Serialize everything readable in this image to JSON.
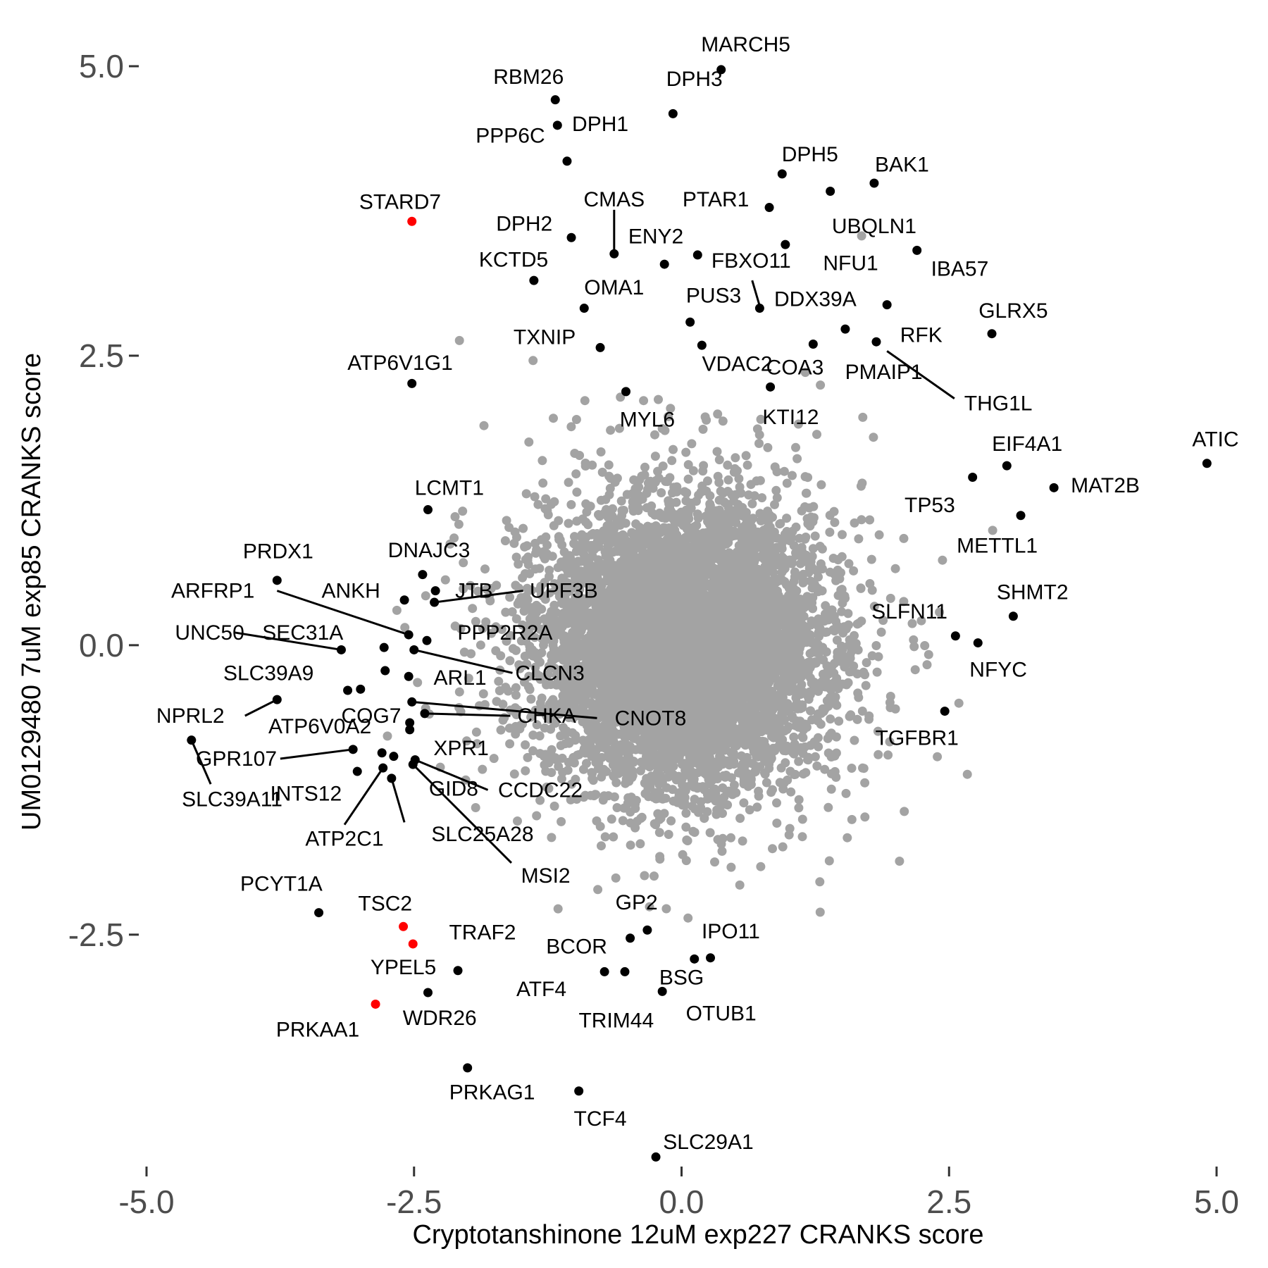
{
  "chart_data": {
    "type": "scatter",
    "xlabel": "Cryptotanshinone 12uM exp227 CRANKS score",
    "ylabel": "UM0129480 7uM exp85 CRANKS score",
    "xlim": [
      -5.0,
      5.0
    ],
    "ylim": [
      -4.6,
      5.0
    ],
    "x_ticks": [
      -5.0,
      -2.5,
      0.0,
      2.5,
      5.0
    ],
    "y_ticks": [
      -2.5,
      0.0,
      2.5,
      5.0
    ],
    "x_tick_labels": [
      "-5.0",
      "-2.5",
      "0.0",
      "2.5",
      "5.0"
    ],
    "y_tick_labels": [
      "-2.5",
      "0.0",
      "2.5",
      "5.0"
    ],
    "grid": false,
    "legend": "none",
    "colors": {
      "background_genes": "#a3a3a3",
      "labeled_genes": "#000000",
      "highlighted_genes": "#ff0000"
    },
    "background_points": {
      "description": "several thousand unlabeled genes forming a dense cloud",
      "center": [
        0.0,
        0.0
      ],
      "core_spread": [
        1.1,
        1.0
      ],
      "outer_spread": [
        1.6,
        1.5
      ]
    },
    "labeled_points": [
      {
        "gene": "MARCH5",
        "x": 0.37,
        "y": 4.97,
        "color": "black"
      },
      {
        "gene": "DPH3",
        "x": -0.08,
        "y": 4.59,
        "color": "black"
      },
      {
        "gene": "RBM26",
        "x": -1.18,
        "y": 4.71,
        "color": "black"
      },
      {
        "gene": "PPP6C",
        "x": -1.16,
        "y": 4.49,
        "color": "black"
      },
      {
        "gene": "DPH1",
        "x": -1.07,
        "y": 4.18,
        "color": "black"
      },
      {
        "gene": "DPH5",
        "x": 0.94,
        "y": 4.07,
        "color": "black"
      },
      {
        "gene": "BAK1",
        "x": 1.8,
        "y": 3.99,
        "color": "black"
      },
      {
        "gene": "UBQLN1",
        "x": 1.39,
        "y": 3.92,
        "color": "black"
      },
      {
        "gene": "PTAR1",
        "x": 0.82,
        "y": 3.78,
        "color": "black"
      },
      {
        "gene": "STARD7",
        "x": -2.52,
        "y": 3.66,
        "color": "red"
      },
      {
        "gene": "DPH2",
        "x": -1.03,
        "y": 3.52,
        "color": "black"
      },
      {
        "gene": "CMAS",
        "x": -0.63,
        "y": 3.38,
        "color": "black"
      },
      {
        "gene": "ENY2",
        "x": -0.16,
        "y": 3.29,
        "color": "black"
      },
      {
        "gene": "FBXO11",
        "x": 0.15,
        "y": 3.37,
        "color": "black"
      },
      {
        "gene": "NFU1",
        "x": 0.97,
        "y": 3.46,
        "color": "black"
      },
      {
        "gene": "IBA57",
        "x": 2.2,
        "y": 3.41,
        "color": "black"
      },
      {
        "gene": "KCTD5",
        "x": -1.38,
        "y": 3.15,
        "color": "black"
      },
      {
        "gene": "OMA1",
        "x": -0.91,
        "y": 2.91,
        "color": "black"
      },
      {
        "gene": "DDX39A",
        "x": 0.73,
        "y": 2.91,
        "color": "black"
      },
      {
        "gene": "PUS3",
        "x": 0.08,
        "y": 2.79,
        "color": "black"
      },
      {
        "gene": "GLRX5",
        "x": 2.9,
        "y": 2.69,
        "color": "black"
      },
      {
        "gene": "RFK",
        "x": 1.82,
        "y": 2.62,
        "color": "black"
      },
      {
        "gene": "TXNIP",
        "x": -0.76,
        "y": 2.57,
        "color": "black"
      },
      {
        "gene": "VDAC2",
        "x": 0.19,
        "y": 2.59,
        "color": "black"
      },
      {
        "gene": "COA3",
        "x": 1.23,
        "y": 2.6,
        "color": "black"
      },
      {
        "gene": "PMAIP1",
        "x": 1.53,
        "y": 2.73,
        "color": "black"
      },
      {
        "gene": "THG1L",
        "x": 1.92,
        "y": 2.94,
        "color": "black"
      },
      {
        "gene": "KTI12",
        "x": 0.83,
        "y": 2.23,
        "color": "black"
      },
      {
        "gene": "ATP6V1G1",
        "x": -2.52,
        "y": 2.26,
        "color": "black"
      },
      {
        "gene": "MYL6",
        "x": -0.52,
        "y": 2.19,
        "color": "black"
      },
      {
        "gene": "ATIC",
        "x": 4.91,
        "y": 1.57,
        "color": "black"
      },
      {
        "gene": "EIF4A1",
        "x": 3.04,
        "y": 1.55,
        "color": "black"
      },
      {
        "gene": "TP53",
        "x": 2.72,
        "y": 1.45,
        "color": "black"
      },
      {
        "gene": "MAT2B",
        "x": 3.48,
        "y": 1.36,
        "color": "black"
      },
      {
        "gene": "METTL1",
        "x": 3.17,
        "y": 1.12,
        "color": "black"
      },
      {
        "gene": "LCMT1",
        "x": -2.37,
        "y": 1.17,
        "color": "black"
      },
      {
        "gene": "PRDX1",
        "x": -3.78,
        "y": 0.56,
        "color": "black"
      },
      {
        "gene": "DNAJC3",
        "x": -2.42,
        "y": 0.61,
        "color": "black"
      },
      {
        "gene": "ANKH",
        "x": -2.59,
        "y": 0.39,
        "color": "black"
      },
      {
        "gene": "JTB",
        "x": -2.31,
        "y": 0.37,
        "color": "black"
      },
      {
        "gene": "UPF3B",
        "x": -2.3,
        "y": 0.47,
        "color": "black"
      },
      {
        "gene": "ARFRP1",
        "x": -2.55,
        "y": 0.09,
        "color": "black"
      },
      {
        "gene": "PPP2R2A",
        "x": -2.38,
        "y": 0.04,
        "color": "black"
      },
      {
        "gene": "SHMT2",
        "x": 3.1,
        "y": 0.25,
        "color": "black"
      },
      {
        "gene": "SLFN11",
        "x": 2.56,
        "y": 0.08,
        "color": "black"
      },
      {
        "gene": "NFYC",
        "x": 2.77,
        "y": 0.02,
        "color": "black"
      },
      {
        "gene": "UNC50",
        "x": -3.18,
        "y": -0.04,
        "color": "black"
      },
      {
        "gene": "SEC31A",
        "x": -2.78,
        "y": -0.02,
        "color": "black"
      },
      {
        "gene": "CLCN3",
        "x": -2.5,
        "y": -0.04,
        "color": "black"
      },
      {
        "gene": "ARL1",
        "x": -2.77,
        "y": -0.22,
        "color": "black"
      },
      {
        "gene": "SLC39A9",
        "x": -3.12,
        "y": -0.39,
        "color": "black"
      },
      {
        "gene": "SLC39A9",
        "x": -3.0,
        "y": -0.38,
        "color": "black"
      },
      {
        "gene": "COG7",
        "x": -2.55,
        "y": -0.27,
        "color": "black"
      },
      {
        "gene": "NPRL2",
        "x": -3.78,
        "y": -0.47,
        "color": "black"
      },
      {
        "gene": "CHKA",
        "x": -2.52,
        "y": -0.49,
        "color": "black"
      },
      {
        "gene": "CNOT8",
        "x": -2.4,
        "y": -0.59,
        "color": "black"
      },
      {
        "gene": "ATP6V0A2",
        "x": -2.54,
        "y": -0.67,
        "color": "black"
      },
      {
        "gene": "TGFBR1",
        "x": 2.46,
        "y": -0.57,
        "color": "black"
      },
      {
        "gene": "SLC39A11",
        "x": -4.58,
        "y": -0.82,
        "color": "black"
      },
      {
        "gene": "XPR1",
        "x": -2.54,
        "y": -0.73,
        "color": "black"
      },
      {
        "gene": "GPR107",
        "x": -3.07,
        "y": -0.9,
        "color": "black"
      },
      {
        "gene": "INTS12",
        "x": -2.8,
        "y": -0.93,
        "color": "black"
      },
      {
        "gene": "INTS12",
        "x": -3.03,
        "y": -1.09,
        "color": "black"
      },
      {
        "gene": "CCDC22",
        "x": -2.49,
        "y": -0.99,
        "color": "black"
      },
      {
        "gene": "GID8",
        "x": -2.69,
        "y": -0.96,
        "color": "black"
      },
      {
        "gene": "ATP2C1",
        "x": -2.79,
        "y": -1.06,
        "color": "black"
      },
      {
        "gene": "SLC25A28",
        "x": -2.71,
        "y": -1.15,
        "color": "black"
      },
      {
        "gene": "MSI2",
        "x": -2.51,
        "y": -1.03,
        "color": "black"
      },
      {
        "gene": "PCYT1A",
        "x": -3.39,
        "y": -2.31,
        "color": "black"
      },
      {
        "gene": "TSC2",
        "x": -2.6,
        "y": -2.43,
        "color": "red"
      },
      {
        "gene": "TRAF2",
        "x": -2.51,
        "y": -2.58,
        "color": "red"
      },
      {
        "gene": "YPEL5",
        "x": -2.09,
        "y": -2.81,
        "color": "black"
      },
      {
        "gene": "WDR26",
        "x": -2.37,
        "y": -3.0,
        "color": "black"
      },
      {
        "gene": "PRKAA1",
        "x": -2.86,
        "y": -3.1,
        "color": "red"
      },
      {
        "gene": "GP2",
        "x": -0.32,
        "y": -2.46,
        "color": "black"
      },
      {
        "gene": "BCOR",
        "x": -0.48,
        "y": -2.53,
        "color": "black"
      },
      {
        "gene": "IPO11",
        "x": 0.27,
        "y": -2.7,
        "color": "black"
      },
      {
        "gene": "IPO11",
        "x": 0.12,
        "y": -2.71,
        "color": "black"
      },
      {
        "gene": "ATF4",
        "x": -0.72,
        "y": -2.82,
        "color": "black"
      },
      {
        "gene": "TRIM44",
        "x": -0.53,
        "y": -2.82,
        "color": "black"
      },
      {
        "gene": "BSG",
        "x": -0.18,
        "y": -2.99,
        "color": "black"
      },
      {
        "gene": "PRKAG1",
        "x": -2.0,
        "y": -3.65,
        "color": "black"
      },
      {
        "gene": "TCF4",
        "x": -0.96,
        "y": -3.85,
        "color": "black"
      },
      {
        "gene": "SLC29A1",
        "x": -0.24,
        "y": -4.42,
        "color": "black"
      }
    ],
    "annotations": [
      {
        "text": "MARCH5",
        "x": 0.6,
        "y": 5.19
      },
      {
        "text": "DPH3",
        "x": 0.12,
        "y": 4.89
      },
      {
        "text": "RBM26",
        "x": -1.43,
        "y": 4.91
      },
      {
        "text": "PPP6C",
        "x": -1.6,
        "y": 4.4
      },
      {
        "text": "DPH1",
        "x": -0.76,
        "y": 4.5
      },
      {
        "text": "DPH5",
        "x": 1.2,
        "y": 4.24
      },
      {
        "text": "BAK1",
        "x": 2.06,
        "y": 4.15
      },
      {
        "text": "UBQLN1",
        "x": 1.8,
        "y": 3.62
      },
      {
        "text": "PTAR1",
        "x": 0.32,
        "y": 3.85
      },
      {
        "text": "STARD7",
        "x": -2.63,
        "y": 3.83
      },
      {
        "text": "DPH2",
        "x": -1.47,
        "y": 3.64
      },
      {
        "text": "CMAS",
        "x": -0.63,
        "y": 3.85
      },
      {
        "text": "ENY2",
        "x": -0.24,
        "y": 3.53
      },
      {
        "text": "FBXO11",
        "x": 0.65,
        "y": 3.32
      },
      {
        "text": "NFU1",
        "x": 1.58,
        "y": 3.3
      },
      {
        "text": "IBA57",
        "x": 2.6,
        "y": 3.25
      },
      {
        "text": "KCTD5",
        "x": -1.57,
        "y": 3.33
      },
      {
        "text": "OMA1",
        "x": -0.63,
        "y": 3.09
      },
      {
        "text": "DDX39A",
        "x": 1.25,
        "y": 2.99
      },
      {
        "text": "PUS3",
        "x": 0.3,
        "y": 3.02
      },
      {
        "text": "GLRX5",
        "x": 3.1,
        "y": 2.89
      },
      {
        "text": "RFK",
        "x": 2.24,
        "y": 2.68
      },
      {
        "text": "TXNIP",
        "x": -1.28,
        "y": 2.66
      },
      {
        "text": "VDAC2",
        "x": 0.52,
        "y": 2.43
      },
      {
        "text": "COA3",
        "x": 1.06,
        "y": 2.4
      },
      {
        "text": "PMAIP1",
        "x": 1.89,
        "y": 2.36
      },
      {
        "text": "THG1L",
        "x": 2.96,
        "y": 2.09
      },
      {
        "text": "KTI12",
        "x": 1.02,
        "y": 1.97
      },
      {
        "text": "ATP6V1G1",
        "x": -2.63,
        "y": 2.44
      },
      {
        "text": "MYL6",
        "x": -0.32,
        "y": 1.95
      },
      {
        "text": "ATIC",
        "x": 4.99,
        "y": 1.78
      },
      {
        "text": "EIF4A1",
        "x": 3.23,
        "y": 1.74
      },
      {
        "text": "TP53",
        "x": 2.32,
        "y": 1.21
      },
      {
        "text": "MAT2B",
        "x": 3.96,
        "y": 1.38
      },
      {
        "text": "METTL1",
        "x": 2.95,
        "y": 0.86
      },
      {
        "text": "LCMT1",
        "x": -2.17,
        "y": 1.36
      },
      {
        "text": "PRDX1",
        "x": -3.77,
        "y": 0.81
      },
      {
        "text": "DNAJC3",
        "x": -2.36,
        "y": 0.82
      },
      {
        "text": "ANKH",
        "x": -3.09,
        "y": 0.47
      },
      {
        "text": "JTB",
        "x": -1.94,
        "y": 0.47
      },
      {
        "text": "UPF3B",
        "x": -1.1,
        "y": 0.47
      },
      {
        "text": "ARFRP1",
        "x": -4.38,
        "y": 0.47
      },
      {
        "text": "PPP2R2A",
        "x": -1.65,
        "y": 0.11
      },
      {
        "text": "SHMT2",
        "x": 3.28,
        "y": 0.46
      },
      {
        "text": "SLFN11",
        "x": 2.13,
        "y": 0.29
      },
      {
        "text": "NFYC",
        "x": 2.96,
        "y": -0.21
      },
      {
        "text": "UNC50",
        "x": -4.41,
        "y": 0.11
      },
      {
        "text": "SEC31A",
        "x": -3.54,
        "y": 0.11
      },
      {
        "text": "CLCN3",
        "x": -1.23,
        "y": -0.24
      },
      {
        "text": "ARL1",
        "x": -2.07,
        "y": -0.28
      },
      {
        "text": "SLC39A9",
        "x": -3.86,
        "y": -0.24
      },
      {
        "text": "COG7",
        "x": -2.9,
        "y": -0.61
      },
      {
        "text": "NPRL2",
        "x": -4.59,
        "y": -0.61
      },
      {
        "text": "CHKA",
        "x": -1.26,
        "y": -0.61
      },
      {
        "text": "CNOT8",
        "x": -0.29,
        "y": -0.63
      },
      {
        "text": "ATP6V0A2",
        "x": -3.38,
        "y": -0.7
      },
      {
        "text": "TGFBR1",
        "x": 2.2,
        "y": -0.8
      },
      {
        "text": "SLC39A11",
        "x": -4.2,
        "y": -1.33
      },
      {
        "text": "XPR1",
        "x": -2.06,
        "y": -0.89
      },
      {
        "text": "GPR107",
        "x": -4.16,
        "y": -0.98
      },
      {
        "text": "INTS12",
        "x": -3.51,
        "y": -1.28
      },
      {
        "text": "CCDC22",
        "x": -1.32,
        "y": -1.25
      },
      {
        "text": "GID8",
        "x": -2.13,
        "y": -1.24
      },
      {
        "text": "ATP2C1",
        "x": -3.15,
        "y": -1.67
      },
      {
        "text": "SLC25A28",
        "x": -1.86,
        "y": -1.63
      },
      {
        "text": "MSI2",
        "x": -1.27,
        "y": -1.99
      },
      {
        "text": "PCYT1A",
        "x": -3.74,
        "y": -2.06
      },
      {
        "text": "TSC2",
        "x": -2.77,
        "y": -2.23
      },
      {
        "text": "TRAF2",
        "x": -1.86,
        "y": -2.48
      },
      {
        "text": "YPEL5",
        "x": -2.6,
        "y": -2.78
      },
      {
        "text": "WDR26",
        "x": -2.26,
        "y": -3.22
      },
      {
        "text": "PRKAA1",
        "x": -3.4,
        "y": -3.32
      },
      {
        "text": "GP2",
        "x": -0.42,
        "y": -2.22
      },
      {
        "text": "BCOR",
        "x": -0.98,
        "y": -2.6
      },
      {
        "text": "IPO11",
        "x": 0.46,
        "y": -2.47
      },
      {
        "text": "ATF4",
        "x": -1.31,
        "y": -2.97
      },
      {
        "text": "TRIM44",
        "x": -0.61,
        "y": -3.24
      },
      {
        "text": "BSG",
        "x": 0.0,
        "y": -2.87
      },
      {
        "text": "OTUB1",
        "x": 0.37,
        "y": -3.18
      },
      {
        "text": "PRKAG1",
        "x": -1.77,
        "y": -3.86
      },
      {
        "text": "TCF4",
        "x": -0.76,
        "y": -4.09
      },
      {
        "text": "SLC29A1",
        "x": 0.25,
        "y": -4.29
      }
    ],
    "leader_lines": [
      {
        "from": [
          -0.63,
          3.41
        ],
        "to": [
          -0.63,
          3.76
        ]
      },
      {
        "from": [
          0.73,
          2.93
        ],
        "to": [
          0.66,
          3.15
        ]
      },
      {
        "from": [
          1.92,
          2.54
        ],
        "to": [
          2.55,
          2.13
        ]
      },
      {
        "from": [
          -2.55,
          0.09
        ],
        "to": [
          -3.78,
          0.47
        ]
      },
      {
        "from": [
          -2.31,
          0.37
        ],
        "to": [
          -1.48,
          0.47
        ]
      },
      {
        "from": [
          -3.18,
          -0.04
        ],
        "to": [
          -4.18,
          0.11
        ]
      },
      {
        "from": [
          -2.5,
          -0.04
        ],
        "to": [
          -1.58,
          -0.24
        ]
      },
      {
        "from": [
          -3.78,
          -0.47
        ],
        "to": [
          -4.08,
          -0.61
        ]
      },
      {
        "from": [
          -2.52,
          -0.49
        ],
        "to": [
          -0.79,
          -0.63
        ]
      },
      {
        "from": [
          -2.4,
          -0.59
        ],
        "to": [
          -1.6,
          -0.61
        ]
      },
      {
        "from": [
          -4.58,
          -0.82
        ],
        "to": [
          -4.4,
          -1.2
        ]
      },
      {
        "from": [
          -3.07,
          -0.9
        ],
        "to": [
          -3.75,
          -0.98
        ]
      },
      {
        "from": [
          -2.49,
          -0.99
        ],
        "to": [
          -1.81,
          -1.25
        ]
      },
      {
        "from": [
          -2.79,
          -1.06
        ],
        "to": [
          -3.15,
          -1.55
        ]
      },
      {
        "from": [
          -2.71,
          -1.15
        ],
        "to": [
          -2.59,
          -1.53
        ]
      },
      {
        "from": [
          -2.51,
          -1.03
        ],
        "to": [
          -1.59,
          -1.88
        ]
      }
    ]
  }
}
